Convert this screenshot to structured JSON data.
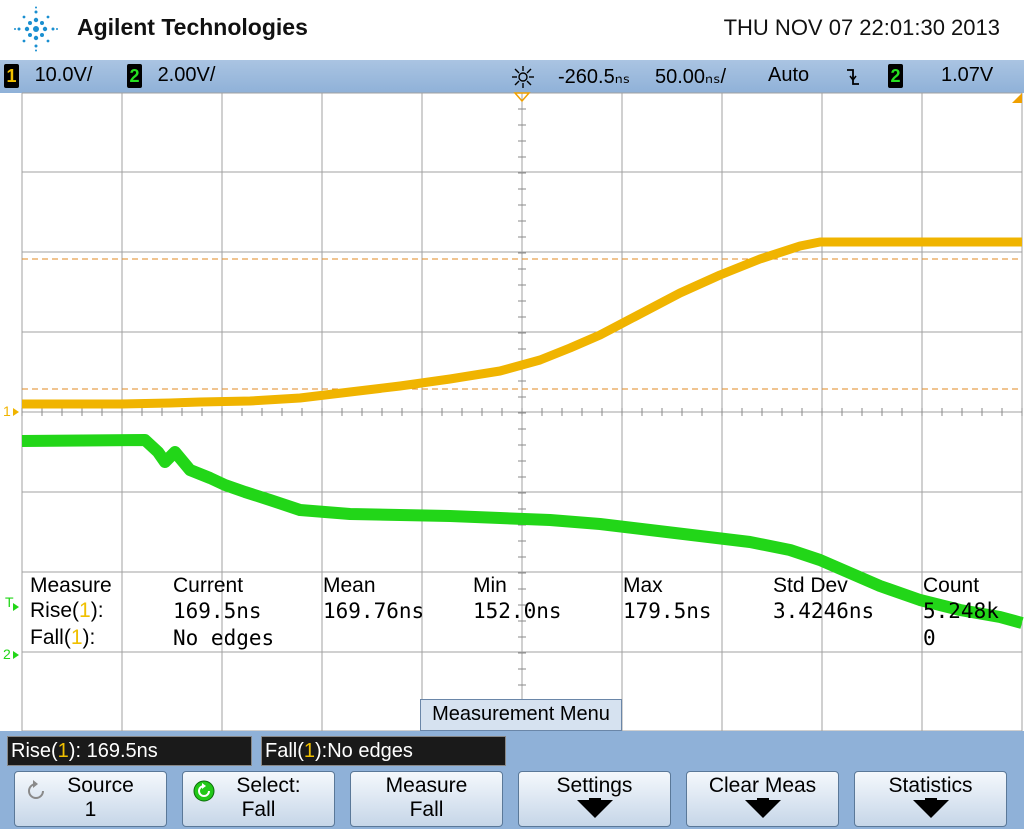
{
  "header": {
    "brand": "Agilent Technologies",
    "datetime": "THU NOV 07 22:01:30 2013"
  },
  "status": {
    "ch1_badge": "1",
    "ch1_scale": "10.0V/",
    "ch2_badge": "2",
    "ch2_scale": "2.00V/",
    "delay": "-260.5ₙₛ",
    "timebase": "50.00ₙₛ/",
    "trigger_mode": "Auto",
    "trigger_slope_icon": "falling-edge-icon",
    "trigger_source": "2",
    "trigger_level": "1.07V"
  },
  "markers": {
    "ch1": "1",
    "ch2": "2",
    "trigger": "T"
  },
  "colors": {
    "ch1": "#f0b400",
    "ch2": "#22d618",
    "background": "#ffffff",
    "grid": "#a0a0a0",
    "bar": "#8fb1d8"
  },
  "measurements": {
    "headers": [
      "Measure",
      "Current",
      "Mean",
      "Min",
      "Max",
      "Std Dev",
      "Count"
    ],
    "rows": [
      {
        "name": "Rise(",
        "ch": "1",
        "close": "):",
        "current": "169.5ns",
        "mean": "169.76ns",
        "min": "152.0ns",
        "max": "179.5ns",
        "std": "3.4246ns",
        "count": "5.248k"
      },
      {
        "name": "Fall(",
        "ch": "1",
        "close": "):",
        "current": "No edges",
        "mean": "",
        "min": "",
        "max": "",
        "std": "",
        "count": "0"
      }
    ]
  },
  "menu_title": "Measurement Menu",
  "readouts": {
    "rise_label": "Rise(",
    "rise_ch": "1",
    "rise_value": "): 169.5ns",
    "fall_label": "Fall(",
    "fall_ch": "1",
    "fall_value": "):No edges"
  },
  "softkeys": [
    {
      "top": "Source",
      "bottom": "1",
      "icon": "rotate-icon"
    },
    {
      "top": "Select:",
      "bottom": "Fall",
      "icon": "rotate-green-icon"
    },
    {
      "top": "Measure",
      "bottom": "Fall",
      "icon": ""
    },
    {
      "top": "Settings",
      "bottom": "",
      "icon": "arrow-down-icon"
    },
    {
      "top": "Clear Meas",
      "bottom": "",
      "icon": "arrow-down-icon"
    },
    {
      "top": "Statistics",
      "bottom": "",
      "icon": "arrow-down-icon"
    }
  ]
}
